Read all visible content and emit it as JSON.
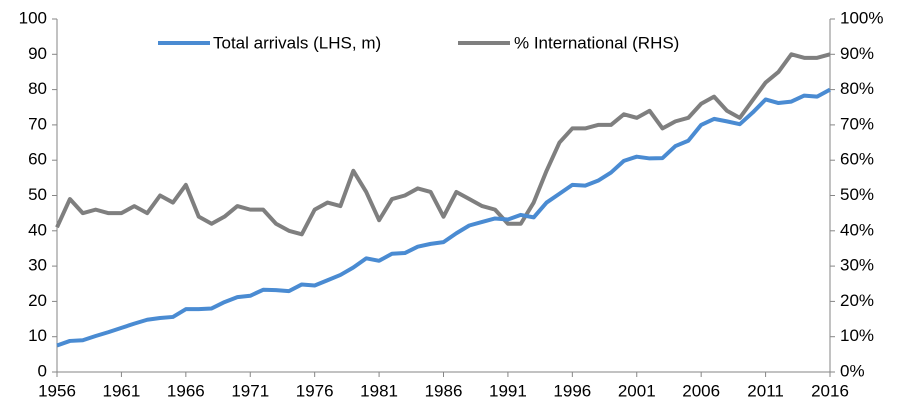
{
  "chart_data": {
    "type": "line",
    "x": [
      1956,
      1957,
      1958,
      1959,
      1960,
      1961,
      1962,
      1963,
      1964,
      1965,
      1966,
      1967,
      1968,
      1969,
      1970,
      1971,
      1972,
      1973,
      1974,
      1975,
      1976,
      1977,
      1978,
      1979,
      1980,
      1981,
      1982,
      1983,
      1984,
      1985,
      1986,
      1987,
      1988,
      1989,
      1990,
      1991,
      1992,
      1993,
      1994,
      1995,
      1996,
      1997,
      1998,
      1999,
      2000,
      2001,
      2002,
      2003,
      2004,
      2005,
      2006,
      2007,
      2008,
      2009,
      2010,
      2011,
      2012,
      2013,
      2014,
      2015,
      2016
    ],
    "series": [
      {
        "name": "Total arrivals (LHS, m)",
        "color": "#4a8bd2",
        "values": [
          7.5,
          8.8,
          9,
          10.2,
          11.3,
          12.5,
          13.7,
          14.8,
          15.3,
          15.6,
          17.8,
          17.8,
          18,
          19.8,
          21.2,
          21.6,
          23.3,
          23.2,
          22.9,
          24.8,
          24.5,
          26,
          27.5,
          29.6,
          32.2,
          31.5,
          33.5,
          33.7,
          35.5,
          36.3,
          36.8,
          39.3,
          41.5,
          42.5,
          43.5,
          43.2,
          44.5,
          43.8,
          48,
          50.5,
          53,
          52.8,
          54.2,
          56.5,
          59.8,
          61,
          60.5,
          60.6,
          64,
          65.5,
          70,
          71.7,
          71,
          70.2,
          73.5,
          77.2,
          76.2,
          76.6,
          78.3,
          78,
          80
        ]
      },
      {
        "name": "% International (RHS)",
        "color": "#7f7f7f",
        "axis": "y2",
        "values": [
          41,
          49,
          45,
          46,
          45,
          45,
          47,
          45,
          50,
          48,
          53,
          44,
          42,
          44,
          47,
          46,
          46,
          42,
          40,
          39,
          46,
          48,
          47,
          57,
          51,
          43,
          49,
          50,
          52,
          51,
          44,
          51,
          49,
          47,
          46,
          42,
          42,
          48,
          57,
          65,
          69,
          69,
          70,
          70,
          73,
          72,
          74,
          69,
          71,
          72,
          76,
          78,
          74,
          72,
          77,
          82,
          85,
          90,
          89,
          89,
          90
        ]
      }
    ],
    "xlim": [
      1956,
      2016
    ],
    "xticks": [
      1956,
      1961,
      1966,
      1971,
      1976,
      1981,
      1986,
      1991,
      1996,
      2001,
      2006,
      2011,
      2016
    ],
    "ylim": [
      0,
      100
    ],
    "yticks": [
      0,
      10,
      20,
      30,
      40,
      50,
      60,
      70,
      80,
      90,
      100
    ],
    "y2lim": [
      0,
      100
    ],
    "y2ticks": [
      {
        "value": 0,
        "label": "0%"
      },
      {
        "value": 10,
        "label": "10%"
      },
      {
        "value": 20,
        "label": "20%"
      },
      {
        "value": 30,
        "label": "30%"
      },
      {
        "value": 40,
        "label": "40%"
      },
      {
        "value": 50,
        "label": "50%"
      },
      {
        "value": 60,
        "label": "60%"
      },
      {
        "value": 70,
        "label": "70%"
      },
      {
        "value": 80,
        "label": "80%"
      },
      {
        "value": 90,
        "label": "90%"
      },
      {
        "value": 100,
        "label": "100%"
      }
    ],
    "legend": "top",
    "grid": false
  }
}
